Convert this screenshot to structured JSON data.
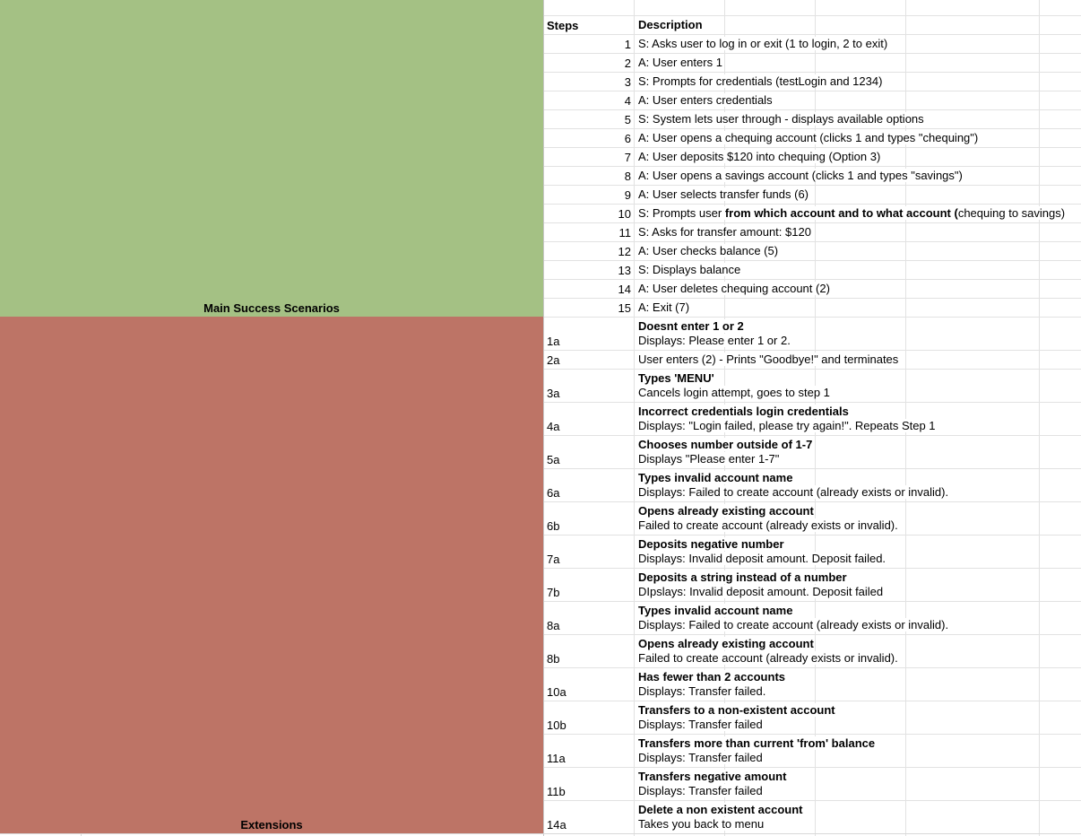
{
  "blocks": {
    "main_label": "Main Success Scenarios",
    "ext_label": "Extensions",
    "main_color": "#a4c184",
    "ext_color": "#bd7466"
  },
  "header": {
    "steps": "Steps",
    "description": "Description"
  },
  "main_steps": [
    {
      "num": "1",
      "text": "S: Asks user to log in or exit (1 to login, 2 to exit)"
    },
    {
      "num": "2",
      "text": "A: User enters 1"
    },
    {
      "num": "3",
      "text": "S: Prompts for credentials (testLogin and 1234)"
    },
    {
      "num": "4",
      "text": "A: User enters credentials"
    },
    {
      "num": "5",
      "text": "S: System lets user through - displays available options"
    },
    {
      "num": "6",
      "text": "A: User opens a chequing account (clicks 1 and types \"chequing\")"
    },
    {
      "num": "7",
      "text": "A: User deposits $120 into chequing (Option 3)"
    },
    {
      "num": "8",
      "text": "A: User opens a savings account (clicks 1 and types \"savings\")"
    },
    {
      "num": "9",
      "text": "A: User selects transfer funds (6)"
    },
    {
      "num": "10",
      "text_a": "S: Prompts user ",
      "text_b": "from which account and to what account (",
      "text_c": "chequing to savings)"
    },
    {
      "num": "11",
      "text": "S: Asks for transfer amount: $120"
    },
    {
      "num": "12",
      "text": "A: User checks balance (5)"
    },
    {
      "num": "13",
      "text": "S: Displays balance"
    },
    {
      "num": "14",
      "text": "A: User deletes chequing account (2)"
    },
    {
      "num": "15",
      "text": "A: Exit (7)"
    }
  ],
  "extensions": [
    {
      "id": "1a",
      "title": "Doesnt enter 1 or 2",
      "detail": "Displays: Please enter 1 or 2."
    },
    {
      "id": "2a",
      "title": "",
      "detail": "User enters (2) - Prints \"Goodbye!\" and terminates"
    },
    {
      "id": "3a",
      "title": "Types 'MENU'",
      "detail": "Cancels login attempt, goes to step 1"
    },
    {
      "id": "4a",
      "title": "Incorrect credentials login credentials",
      "detail": "Displays: \"Login failed, please try again!\". Repeats Step 1"
    },
    {
      "id": "5a",
      "title": "Chooses number outside of 1-7",
      "detail": "Displays \"Please enter 1-7\""
    },
    {
      "id": "6a",
      "title": "Types invalid account name",
      "detail": "Displays: Failed to create account (already exists or invalid)."
    },
    {
      "id": "6b",
      "title": "Opens already existing account",
      "detail": "Failed to create account (already exists or invalid)."
    },
    {
      "id": "7a",
      "title": "Deposits negative number",
      "detail": "Displays: Invalid deposit amount. Deposit failed."
    },
    {
      "id": "7b",
      "title": "Deposits a string instead of a number",
      "detail": "DIpslays: Invalid deposit amount. Deposit failed"
    },
    {
      "id": "8a",
      "title": "Types invalid account name",
      "detail": "Displays: Failed to create account (already exists or invalid)."
    },
    {
      "id": "8b",
      "title": "Opens already existing account",
      "detail": "Failed to create account (already exists or invalid)."
    },
    {
      "id": "10a",
      "title": "Has fewer than 2 accounts",
      "detail": "Displays: Transfer failed."
    },
    {
      "id": "10b",
      "title": "Transfers to a non-existent account",
      "detail": "Displays: Transfer failed"
    },
    {
      "id": "11a",
      "title": "Transfers more than current 'from' balance",
      "detail": "Displays: Transfer failed"
    },
    {
      "id": "11b",
      "title": "Transfers negative amount",
      "detail": "Displays: Transfer failed"
    },
    {
      "id": "14a",
      "title": "Delete a non existent account",
      "detail": "Takes you back to menu"
    }
  ]
}
